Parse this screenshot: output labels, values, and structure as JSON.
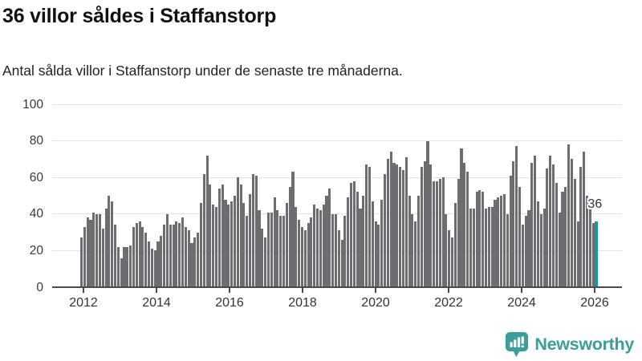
{
  "header": {
    "title": "36 villor såldes i Staffanstorp",
    "subtitle": "Antal sålda villor i Staffanstorp under de senaste tre månaderna."
  },
  "chart_data": {
    "type": "bar",
    "title": "36 villor såldes i Staffanstorp",
    "subtitle": "Antal sålda villor i Staffanstorp under de senaste tre månaderna.",
    "unit": "antal sålda villor per månad",
    "frequency": "monthly",
    "x_start_month": "2012-01",
    "x_end_month": "2026-01",
    "values": [
      27,
      33,
      38,
      37,
      41,
      40,
      40,
      32,
      43,
      50,
      47,
      34,
      22,
      16,
      22,
      22,
      23,
      33,
      35,
      36,
      33,
      30,
      25,
      21,
      20,
      25,
      28,
      34,
      40,
      34,
      34,
      36,
      35,
      38,
      33,
      31,
      24,
      27,
      30,
      46,
      62,
      72,
      56,
      45,
      44,
      54,
      56,
      48,
      45,
      47,
      50,
      60,
      56,
      46,
      39,
      51,
      62,
      61,
      42,
      32,
      27,
      41,
      41,
      49,
      42,
      39,
      39,
      46,
      55,
      63,
      44,
      37,
      33,
      31,
      35,
      38,
      45,
      43,
      42,
      45,
      50,
      54,
      40,
      40,
      31,
      26,
      39,
      49,
      57,
      58,
      52,
      43,
      50,
      67,
      66,
      47,
      36,
      34,
      48,
      62,
      70,
      74,
      68,
      67,
      66,
      64,
      71,
      50,
      40,
      36,
      50,
      66,
      69,
      80,
      67,
      58,
      58,
      59,
      60,
      40,
      31,
      27,
      46,
      59,
      76,
      68,
      63,
      43,
      43,
      52,
      53,
      52,
      43,
      44,
      44,
      48,
      49,
      50,
      51,
      40,
      61,
      69,
      77,
      55,
      34,
      39,
      42,
      68,
      72,
      47,
      40,
      43,
      65,
      72,
      67,
      57,
      41,
      52,
      55,
      78,
      70,
      59,
      36,
      66,
      74,
      50,
      44,
      35,
      36
    ],
    "highlight": {
      "index": 168,
      "value": 36,
      "label": "36"
    },
    "yticks": [
      0,
      20,
      40,
      60,
      80,
      100
    ],
    "ylim": [
      0,
      100
    ],
    "xticks": [
      {
        "label": "2012",
        "month_index": 0
      },
      {
        "label": "2014",
        "month_index": 24
      },
      {
        "label": "2016",
        "month_index": 48
      },
      {
        "label": "2018",
        "month_index": 72
      },
      {
        "label": "2020",
        "month_index": 96
      },
      {
        "label": "2022",
        "month_index": 120
      },
      {
        "label": "2024",
        "month_index": 144
      },
      {
        "label": "2026",
        "month_index": 168
      }
    ],
    "grid": "horizontal",
    "legend": "none",
    "colors": {
      "bar": "#6d6d71",
      "highlight_bar": "#149a9c",
      "axis": "#4a4a4a",
      "gridline": "#e3e3e3",
      "tick_label": "#333333"
    }
  },
  "footer": {
    "brand": "Newsworthy",
    "brand_color": "#3b9e9a",
    "logo_icon": "newsworthy-chart-bubble-icon"
  }
}
